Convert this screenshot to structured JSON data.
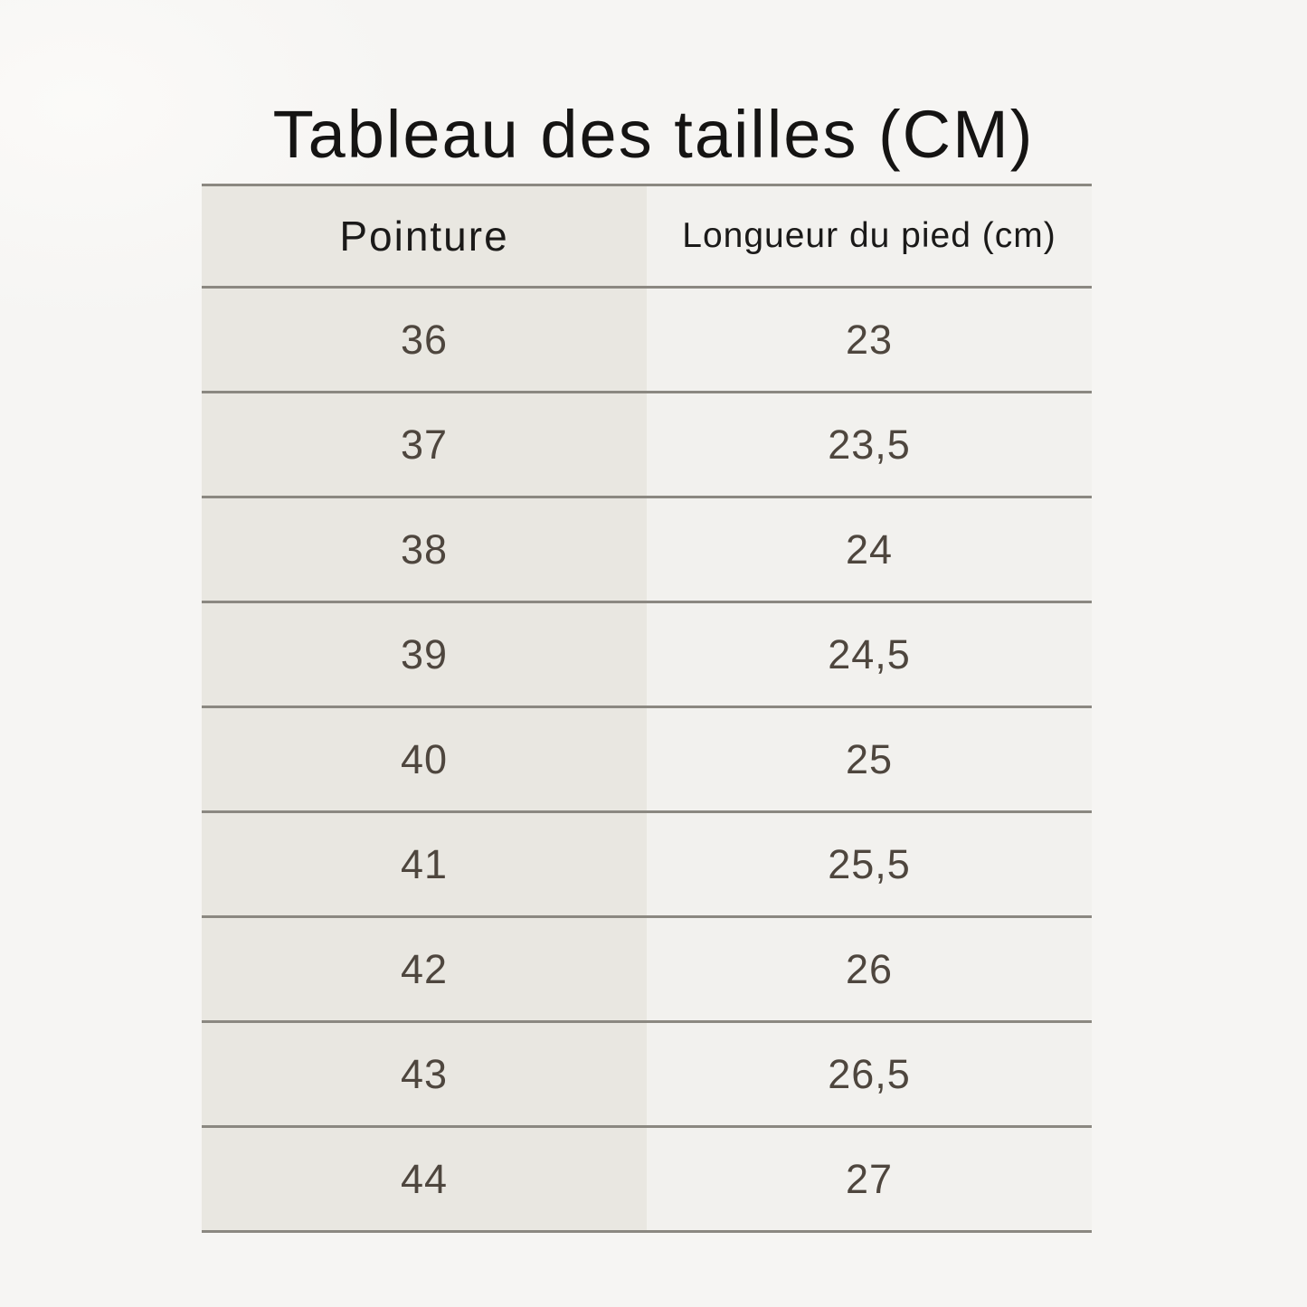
{
  "title": "Tableau des tailles (CM)",
  "table": {
    "headers": {
      "pointure": "Pointure",
      "longueur": "Longueur du pied (cm)"
    },
    "rows": [
      {
        "pointure": "36",
        "longueur": "23"
      },
      {
        "pointure": "37",
        "longueur": "23,5"
      },
      {
        "pointure": "38",
        "longueur": "24"
      },
      {
        "pointure": "39",
        "longueur": "24,5"
      },
      {
        "pointure": "40",
        "longueur": "25"
      },
      {
        "pointure": "41",
        "longueur": "25,5"
      },
      {
        "pointure": "42",
        "longueur": "26"
      },
      {
        "pointure": "43",
        "longueur": "26,5"
      },
      {
        "pointure": "44",
        "longueur": "27"
      }
    ]
  },
  "colors": {
    "page_background": "#f6f5f3",
    "left_column_background": "#e9e7e1",
    "right_column_background": "#f2f1ee",
    "divider_line": "#8b8881",
    "title_text": "#151413",
    "header_text": "#1b1a19",
    "cell_text": "#4e463e"
  }
}
